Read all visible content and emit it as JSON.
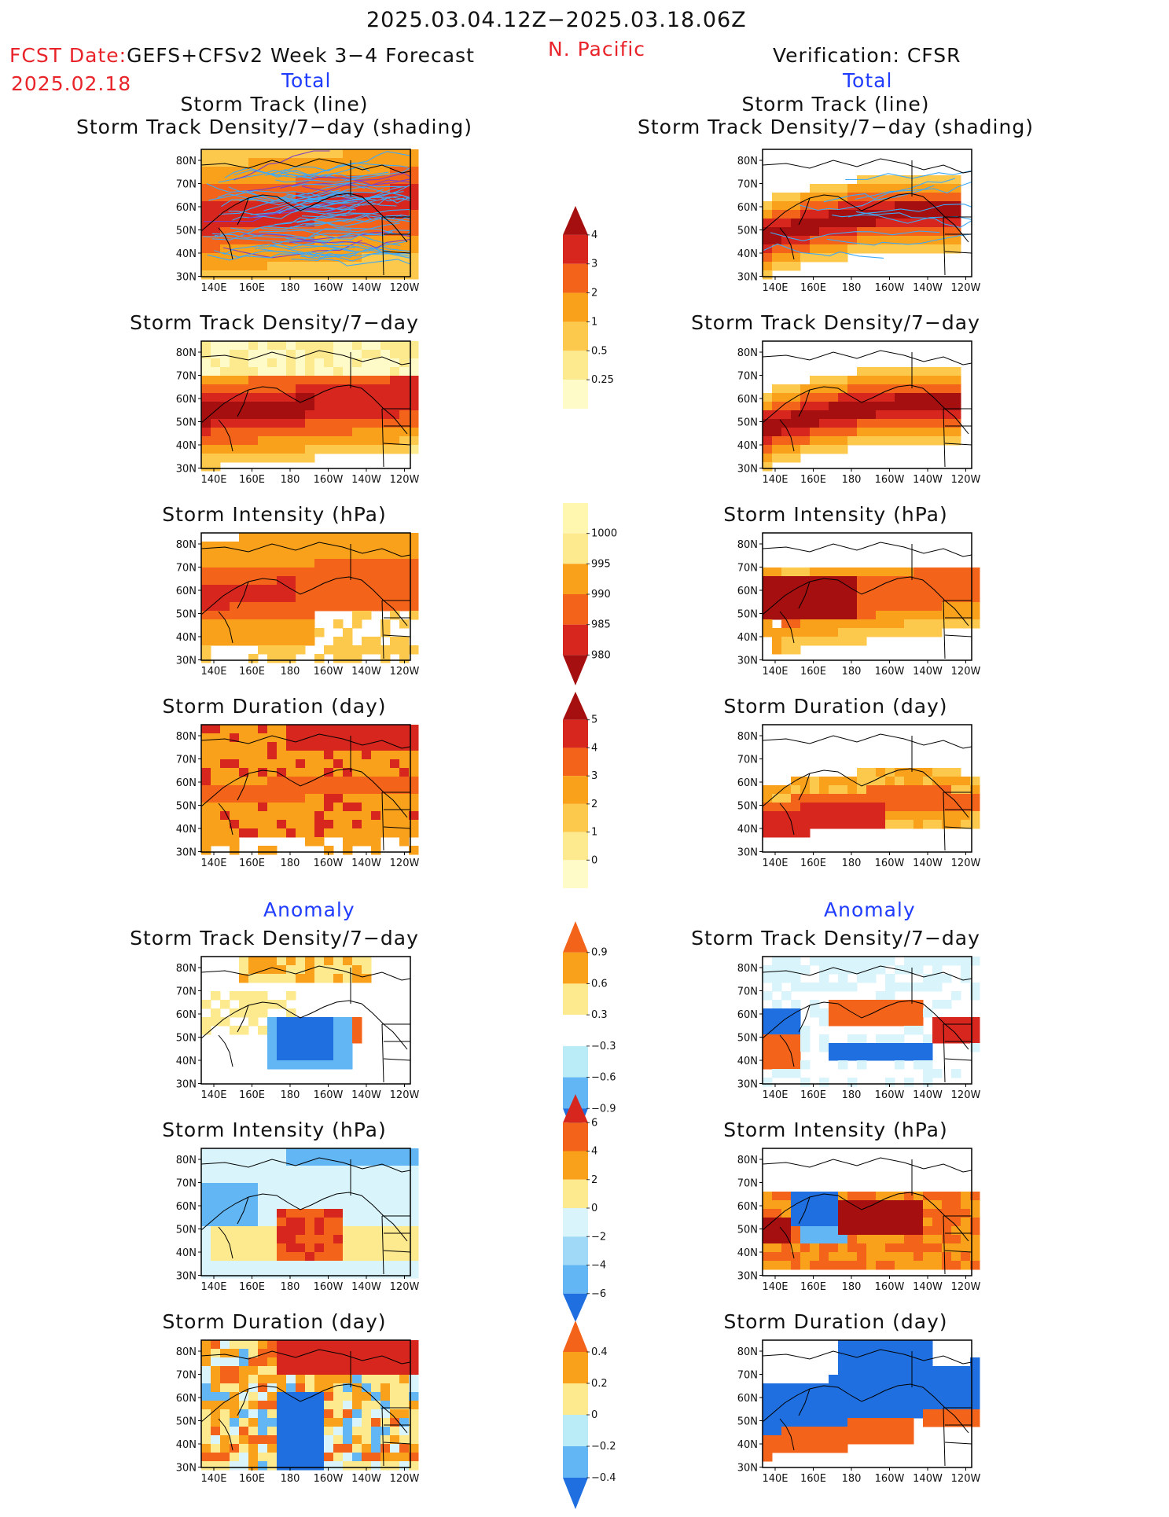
{
  "header": {
    "date_range": "2025.03.04.12Z−2025.03.18.06Z",
    "fcst_label": "FCST Date:",
    "model": "GEFS+CFSv2 Week 3−4 Forecast",
    "fcst_date": "2025.02.18",
    "region": "N. Pacific",
    "verification": "Verification: CFSR",
    "left_total": "Total",
    "right_total": "Total",
    "left_anomaly": "Anomaly",
    "right_anomaly": "Anomaly"
  },
  "axes": {
    "lat_labels": [
      "80N",
      "70N",
      "60N",
      "50N",
      "40N",
      "30N"
    ],
    "lon_labels": [
      "140E",
      "160E",
      "180",
      "160W",
      "140W",
      "120W"
    ]
  },
  "panels": [
    {
      "id": "fc-track",
      "col": "left",
      "title1": "Storm Track (line)",
      "title2": "Storm Track Density/7−day (shading)",
      "field": "track_forecast"
    },
    {
      "id": "fc-density",
      "col": "left",
      "title1": "Storm Track Density/7−day",
      "field": "density_forecast"
    },
    {
      "id": "fc-intensity",
      "col": "left",
      "title1": "Storm Intensity (hPa)",
      "field": "intensity_forecast"
    },
    {
      "id": "fc-duration",
      "col": "left",
      "title1": "Storm Duration (day)",
      "field": "duration_forecast"
    },
    {
      "id": "fc-density-anom",
      "col": "left",
      "title1": "Storm Track Density/7−day",
      "field": "density_anom_forecast"
    },
    {
      "id": "fc-intensity-anom",
      "col": "left",
      "title1": "Storm Intensity (hPa)",
      "field": "intensity_anom_forecast"
    },
    {
      "id": "fc-duration-anom",
      "col": "left",
      "title1": "Storm Duration (day)",
      "field": "duration_anom_forecast"
    },
    {
      "id": "ob-track",
      "col": "right",
      "title1": "Storm Track (line)",
      "title2": "Storm Track Density/7−day (shading)",
      "field": "track_obs"
    },
    {
      "id": "ob-density",
      "col": "right",
      "title1": "Storm Track Density/7−day",
      "field": "density_obs"
    },
    {
      "id": "ob-intensity",
      "col": "right",
      "title1": "Storm Intensity (hPa)",
      "field": "intensity_obs"
    },
    {
      "id": "ob-duration",
      "col": "right",
      "title1": "Storm Duration (day)",
      "field": "duration_obs"
    },
    {
      "id": "ob-density-anom",
      "col": "right",
      "title1": "Storm Track Density/7−day",
      "field": "density_anom_obs"
    },
    {
      "id": "ob-intensity-anom",
      "col": "right",
      "title1": "Storm Intensity (hPa)",
      "field": "intensity_anom_obs"
    },
    {
      "id": "ob-duration-anom",
      "col": "right",
      "title1": "Storm Duration (day)",
      "field": "duration_anom_obs"
    }
  ],
  "colorbars": [
    {
      "id": "density",
      "labels": [
        "4",
        "3",
        "2",
        "1",
        "0.5",
        "0.25"
      ],
      "colors": [
        "#a50f0f",
        "#d7261e",
        "#f4631a",
        "#f9a11b",
        "#fcc94d",
        "#fde98e",
        "#fffbc8"
      ],
      "top_arrow": true,
      "bottom_arrow": false
    },
    {
      "id": "intensity",
      "labels": [
        "1000",
        "995",
        "990",
        "985",
        "980"
      ],
      "colors": [
        "#fff6b0",
        "#fde98e",
        "#f9a11b",
        "#f4631a",
        "#d7261e",
        "#a50f0f"
      ],
      "top_arrow": false,
      "bottom_arrow": true
    },
    {
      "id": "duration",
      "labels": [
        "5",
        "4",
        "3",
        "2",
        "1",
        "0"
      ],
      "colors": [
        "#a50f0f",
        "#d7261e",
        "#f4631a",
        "#f9a11b",
        "#fcc94d",
        "#fde98e",
        "#fffbc8"
      ],
      "top_arrow": true,
      "bottom_arrow": false
    },
    {
      "id": "density-anom",
      "labels": [
        "0.9",
        "0.6",
        "0.3",
        "−0.3",
        "−0.6",
        "−0.9"
      ],
      "colors": [
        "#f4631a",
        "#f9a11b",
        "#fde98e",
        "#ffffff",
        "#b9ecf7",
        "#62b6f4",
        "#1f6fe0"
      ],
      "top_arrow": true,
      "bottom_arrow": true
    },
    {
      "id": "intensity-anom",
      "labels": [
        "6",
        "4",
        "2",
        "0",
        "−2",
        "−4",
        "−6"
      ],
      "colors": [
        "#d7261e",
        "#f4631a",
        "#f9a11b",
        "#fde98e",
        "#d9f5fb",
        "#9fd9f7",
        "#62b6f4",
        "#1f6fe0"
      ],
      "top_arrow": true,
      "bottom_arrow": true
    },
    {
      "id": "duration-anom",
      "labels": [
        "0.4",
        "0.2",
        "0",
        "−0.2",
        "−0.4"
      ],
      "colors": [
        "#f4631a",
        "#f9a11b",
        "#fde98e",
        "#b9ecf7",
        "#62b6f4",
        "#1f6fe0"
      ],
      "top_arrow": true,
      "bottom_arrow": true
    }
  ],
  "fields": {
    "track_forecast": "warm-broad",
    "density_forecast": "warm-band-left",
    "intensity_forecast": "warm-block",
    "duration_forecast": "warm-block-strong",
    "density_anom_forecast": "anom-left-density",
    "intensity_anom_forecast": "anom-left-intensity",
    "duration_anom_forecast": "anom-left-duration",
    "track_obs": "warm-band-right",
    "density_obs": "warm-band-right",
    "intensity_obs": "warm-partial",
    "duration_obs": "warm-arc",
    "density_anom_obs": "anom-right-density",
    "intensity_anom_obs": "anom-right-intensity",
    "duration_anom_obs": "anom-right-duration"
  }
}
